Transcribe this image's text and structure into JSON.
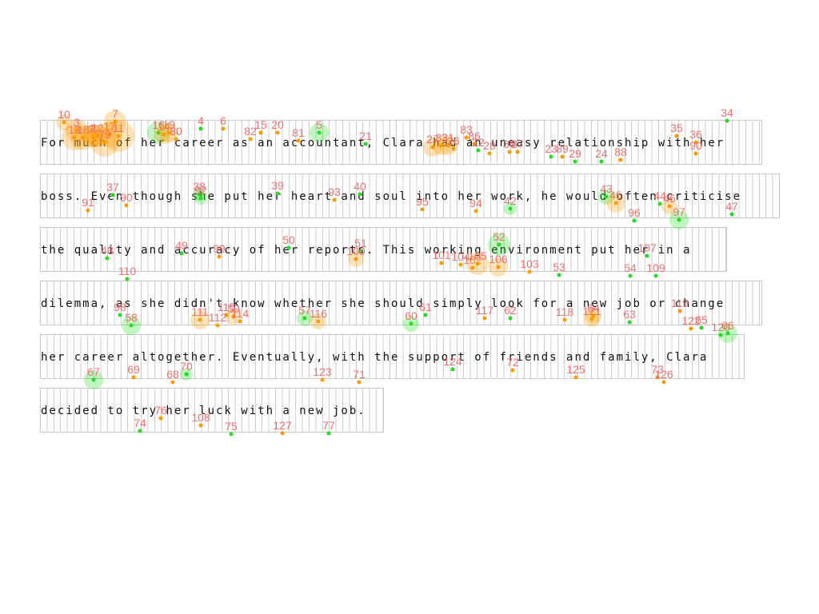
{
  "colors": {
    "fixation_green": "#22dd22",
    "fixation_orange": "#ff9900",
    "label_red": "#ee6a6a",
    "cell_border": "#c8c8c8"
  },
  "passage": {
    "lines": [
      "For much of her career as an accountant, Clara had an uneasy relationship with her",
      "boss. Even though she put her heart and soul into her work, he would often criticise",
      "the quality and accuracy of her reports. This working environment put her in a",
      "dilemma, as she didn't know whether she should simply look for a new job or change",
      "her career altogether. Eventually, with the support of friends and family, Clara",
      "decided to try her luck with a new job."
    ]
  },
  "fixations": [
    {
      "id": "10",
      "c": "o"
    },
    {
      "id": "3",
      "c": "o"
    },
    {
      "id": "7",
      "c": "o"
    },
    {
      "id": "13",
      "c": "o"
    },
    {
      "id": "18",
      "c": "o"
    },
    {
      "id": "2",
      "c": "o"
    },
    {
      "id": "32",
      "c": "o"
    },
    {
      "id": "12",
      "c": "o"
    },
    {
      "id": "17",
      "c": "o"
    },
    {
      "id": "11",
      "c": "o"
    },
    {
      "id": "79",
      "c": "o"
    },
    {
      "id": "16",
      "c": "g"
    },
    {
      "id": "14",
      "c": "o"
    },
    {
      "id": "19",
      "c": "o"
    },
    {
      "id": "80",
      "c": "o"
    },
    {
      "id": "4",
      "c": "g"
    },
    {
      "id": "6",
      "c": "o"
    },
    {
      "id": "82",
      "c": "o"
    },
    {
      "id": "15",
      "c": "o"
    },
    {
      "id": "20",
      "c": "o"
    },
    {
      "id": "81",
      "c": "o"
    },
    {
      "id": "5",
      "c": "g"
    },
    {
      "id": "21",
      "c": "g"
    },
    {
      "id": "27",
      "c": "o"
    },
    {
      "id": "33",
      "c": "o"
    },
    {
      "id": "31",
      "c": "o"
    },
    {
      "id": "26",
      "c": "o"
    },
    {
      "id": "83",
      "c": "o"
    },
    {
      "id": "86",
      "c": "o"
    },
    {
      "id": "22",
      "c": "g"
    },
    {
      "id": "28",
      "c": "o"
    },
    {
      "id": "30",
      "c": "o"
    },
    {
      "id": "87",
      "c": "o"
    },
    {
      "id": "23",
      "c": "g"
    },
    {
      "id": "89",
      "c": "o"
    },
    {
      "id": "29",
      "c": "g"
    },
    {
      "id": "24",
      "c": "g"
    },
    {
      "id": "88",
      "c": "o"
    },
    {
      "id": "35",
      "c": "o"
    },
    {
      "id": "36",
      "c": "o"
    },
    {
      "id": "90",
      "c": "o"
    },
    {
      "id": "34",
      "c": "g"
    },
    {
      "id": "91",
      "c": "o"
    },
    {
      "id": "37",
      "c": "g"
    },
    {
      "id": "90",
      "c": "o"
    },
    {
      "id": "38",
      "c": "g"
    },
    {
      "id": "92",
      "c": "g"
    },
    {
      "id": "39",
      "c": "g"
    },
    {
      "id": "93",
      "c": "o"
    },
    {
      "id": "40",
      "c": "g"
    },
    {
      "id": "95",
      "c": "o"
    },
    {
      "id": "94",
      "c": "o"
    },
    {
      "id": "42",
      "c": "g"
    },
    {
      "id": "43",
      "c": "g"
    },
    {
      "id": "45",
      "c": "o"
    },
    {
      "id": "44",
      "c": "g"
    },
    {
      "id": "46",
      "c": "o"
    },
    {
      "id": "96",
      "c": "g"
    },
    {
      "id": "97",
      "c": "g"
    },
    {
      "id": "47",
      "c": "g"
    },
    {
      "id": "48",
      "c": "g"
    },
    {
      "id": "49",
      "c": "g"
    },
    {
      "id": "99",
      "c": "o"
    },
    {
      "id": "50",
      "c": "g"
    },
    {
      "id": "51",
      "c": "g"
    },
    {
      "id": "100",
      "c": "o"
    },
    {
      "id": "52",
      "c": "g"
    },
    {
      "id": "101",
      "c": "o"
    },
    {
      "id": "104",
      "c": "o"
    },
    {
      "id": "102",
      "c": "o"
    },
    {
      "id": "105",
      "c": "o"
    },
    {
      "id": "106",
      "c": "o"
    },
    {
      "id": "103",
      "c": "o"
    },
    {
      "id": "53",
      "c": "g"
    },
    {
      "id": "107",
      "c": "g"
    },
    {
      "id": "54",
      "c": "g"
    },
    {
      "id": "109",
      "c": "g"
    },
    {
      "id": "110",
      "c": "g"
    },
    {
      "id": "98",
      "c": "g"
    },
    {
      "id": "58",
      "c": "g"
    },
    {
      "id": "111",
      "c": "o"
    },
    {
      "id": "115",
      "c": "o"
    },
    {
      "id": "112",
      "c": "o"
    },
    {
      "id": "59",
      "c": "o"
    },
    {
      "id": "114",
      "c": "o"
    },
    {
      "id": "57",
      "c": "g"
    },
    {
      "id": "116",
      "c": "o"
    },
    {
      "id": "60",
      "c": "g"
    },
    {
      "id": "61",
      "c": "g"
    },
    {
      "id": "117",
      "c": "o"
    },
    {
      "id": "62",
      "c": "g"
    },
    {
      "id": "118",
      "c": "o"
    },
    {
      "id": "64",
      "c": "o"
    },
    {
      "id": "121",
      "c": "o"
    },
    {
      "id": "63",
      "c": "g"
    },
    {
      "id": "119",
      "c": "o"
    },
    {
      "id": "122",
      "c": "o"
    },
    {
      "id": "65",
      "c": "g"
    },
    {
      "id": "120",
      "c": "g"
    },
    {
      "id": "66",
      "c": "g"
    },
    {
      "id": "67",
      "c": "g"
    },
    {
      "id": "69",
      "c": "o"
    },
    {
      "id": "68",
      "c": "o"
    },
    {
      "id": "70",
      "c": "g"
    },
    {
      "id": "123",
      "c": "o"
    },
    {
      "id": "71",
      "c": "o"
    },
    {
      "id": "124",
      "c": "g"
    },
    {
      "id": "72",
      "c": "o"
    },
    {
      "id": "125",
      "c": "o"
    },
    {
      "id": "73",
      "c": "o"
    },
    {
      "id": "126",
      "c": "o"
    },
    {
      "id": "74",
      "c": "g"
    },
    {
      "id": "76",
      "c": "o"
    },
    {
      "id": "108",
      "c": "o"
    },
    {
      "id": "75",
      "c": "g"
    },
    {
      "id": "127",
      "c": "o"
    },
    {
      "id": "77",
      "c": "g"
    },
    {
      "id": "78",
      "c": "g"
    }
  ]
}
